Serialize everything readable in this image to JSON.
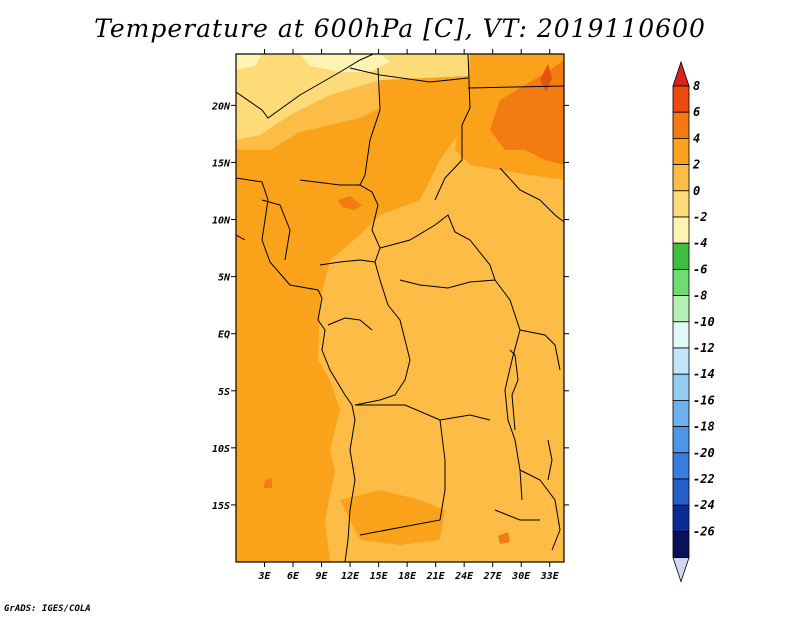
{
  "title": "Temperature at 600hPa [C], VT: 2019110600",
  "credit": "GrADS: IGES/COLA",
  "map": {
    "lon_range": [
      0,
      34.5
    ],
    "lat_range": [
      -20,
      24.5
    ],
    "lon_ticks": [
      "3E",
      "6E",
      "9E",
      "12E",
      "15E",
      "18E",
      "21E",
      "24E",
      "27E",
      "30E",
      "33E"
    ],
    "lon_tick_values": [
      3,
      6,
      9,
      12,
      15,
      18,
      21,
      24,
      27,
      30,
      33
    ],
    "lat_ticks": [
      "20N",
      "15N",
      "10N",
      "5N",
      "EQ",
      "5S",
      "10S",
      "15S"
    ],
    "lat_tick_values": [
      20,
      15,
      10,
      5,
      0,
      -5,
      -10,
      -15
    ],
    "field_colors": {
      "range_0_2": "#fcbc46",
      "range_2_4": "#f9a21a",
      "range_4_6": "#f27b12",
      "range_6_8": "#e5540c",
      "range_m2_0": "#fedb79",
      "range_m4_m2": "#fff3b3"
    }
  },
  "colorbar": {
    "labels": [
      "8",
      "6",
      "4",
      "2",
      "0",
      "-2",
      "-4",
      "-6",
      "-8",
      "-10",
      "-12",
      "-14",
      "-16",
      "-18",
      "-20",
      "-22",
      "-24",
      "-26"
    ],
    "colors": [
      "#d8231a",
      "#ee4a0e",
      "#f7780f",
      "#f9a21a",
      "#fcbc46",
      "#fedb79",
      "#fff3b3",
      "#3fbf3f",
      "#6fdc6f",
      "#b5f0b5",
      "#e1f8f8",
      "#c1e6f7",
      "#95cdf2",
      "#6eb0ee",
      "#4e95e6",
      "#3a7ddf",
      "#245ec8",
      "#0b2a94",
      "#09115a",
      "#d4d4f4"
    ]
  }
}
